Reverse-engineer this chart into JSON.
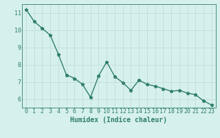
{
  "x": [
    0,
    1,
    2,
    3,
    4,
    5,
    6,
    7,
    8,
    9,
    10,
    11,
    12,
    13,
    14,
    15,
    16,
    17,
    18,
    19,
    20,
    21,
    22,
    23
  ],
  "y": [
    11.2,
    10.5,
    10.1,
    9.7,
    8.6,
    7.4,
    7.2,
    6.85,
    6.1,
    7.35,
    8.15,
    7.3,
    6.95,
    6.5,
    7.1,
    6.85,
    6.75,
    6.6,
    6.45,
    6.5,
    6.35,
    6.25,
    5.9,
    5.65
  ],
  "line_color": "#2e7d6e",
  "marker": "*",
  "marker_size": 3.5,
  "bg_color": "#d6f0ed",
  "grid_color": "#c0deda",
  "axis_color": "#2e7d6e",
  "xlabel": "Humidex (Indice chaleur)",
  "xlabel_fontsize": 7,
  "tick_fontsize": 6,
  "xlim": [
    -0.5,
    23.5
  ],
  "ylim": [
    5.5,
    11.5
  ],
  "yticks": [
    6,
    7,
    8,
    9,
    10,
    11
  ],
  "xticks": [
    0,
    1,
    2,
    3,
    4,
    5,
    6,
    7,
    8,
    9,
    10,
    11,
    12,
    13,
    14,
    15,
    16,
    17,
    18,
    19,
    20,
    21,
    22,
    23
  ],
  "line_width": 1.0
}
